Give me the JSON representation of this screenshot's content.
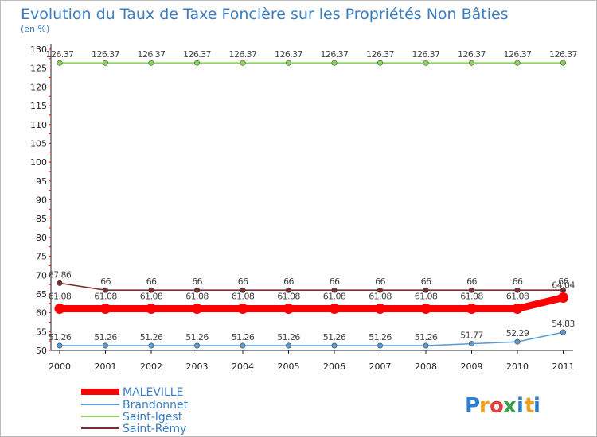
{
  "chart_data": {
    "type": "line",
    "title": "Evolution du Taux de Taxe Foncière sur les Propriétés Non Bâties",
    "ylabel": "(en %)",
    "xlabel": "",
    "categories": [
      "2000",
      "2001",
      "2002",
      "2003",
      "2004",
      "2005",
      "2006",
      "2007",
      "2008",
      "2009",
      "2010",
      "2011"
    ],
    "ylim": [
      50,
      130
    ],
    "yticks": [
      50,
      55,
      60,
      65,
      70,
      75,
      80,
      85,
      90,
      95,
      100,
      105,
      110,
      115,
      120,
      125,
      130
    ],
    "grid": false,
    "legend_position": "bottom-left",
    "series": [
      {
        "name": "MALEVILLE",
        "color": "#ff0000",
        "values": [
          61.08,
          61.08,
          61.08,
          61.08,
          61.08,
          61.08,
          61.08,
          61.08,
          61.08,
          61.08,
          61.08,
          64.04
        ],
        "labels": [
          "61.08",
          "61.08",
          "61.08",
          "61.08",
          "61.08",
          "61.08",
          "61.08",
          "61.08",
          "61.08",
          "61.08",
          "61.08",
          "64.04"
        ]
      },
      {
        "name": "Brandonnet",
        "color": "#5b9bd5",
        "values": [
          51.26,
          51.26,
          51.26,
          51.26,
          51.26,
          51.26,
          51.26,
          51.26,
          51.26,
          51.77,
          52.29,
          54.83
        ],
        "labels": [
          "51.26",
          "51.26",
          "51.26",
          "51.26",
          "51.26",
          "51.26",
          "51.26",
          "51.26",
          "51.26",
          "51.77",
          "52.29",
          "54.83"
        ]
      },
      {
        "name": "Saint-Igest",
        "color": "#8fd45a",
        "values": [
          126.37,
          126.37,
          126.37,
          126.37,
          126.37,
          126.37,
          126.37,
          126.37,
          126.37,
          126.37,
          126.37,
          126.37
        ],
        "labels": [
          "126.37",
          "126.37",
          "126.37",
          "126.37",
          "126.37",
          "126.37",
          "126.37",
          "126.37",
          "126.37",
          "126.37",
          "126.37",
          "126.37"
        ]
      },
      {
        "name": "Saint-Rémy",
        "color": "#7a2e2e",
        "values": [
          67.86,
          66,
          66,
          66,
          66,
          66,
          66,
          66,
          66,
          66,
          66,
          66
        ],
        "labels": [
          "67.86",
          "66",
          "66",
          "66",
          "66",
          "66",
          "66",
          "66",
          "66",
          "66",
          "66",
          "66"
        ]
      }
    ]
  },
  "logo": {
    "text": "Proxiti"
  }
}
